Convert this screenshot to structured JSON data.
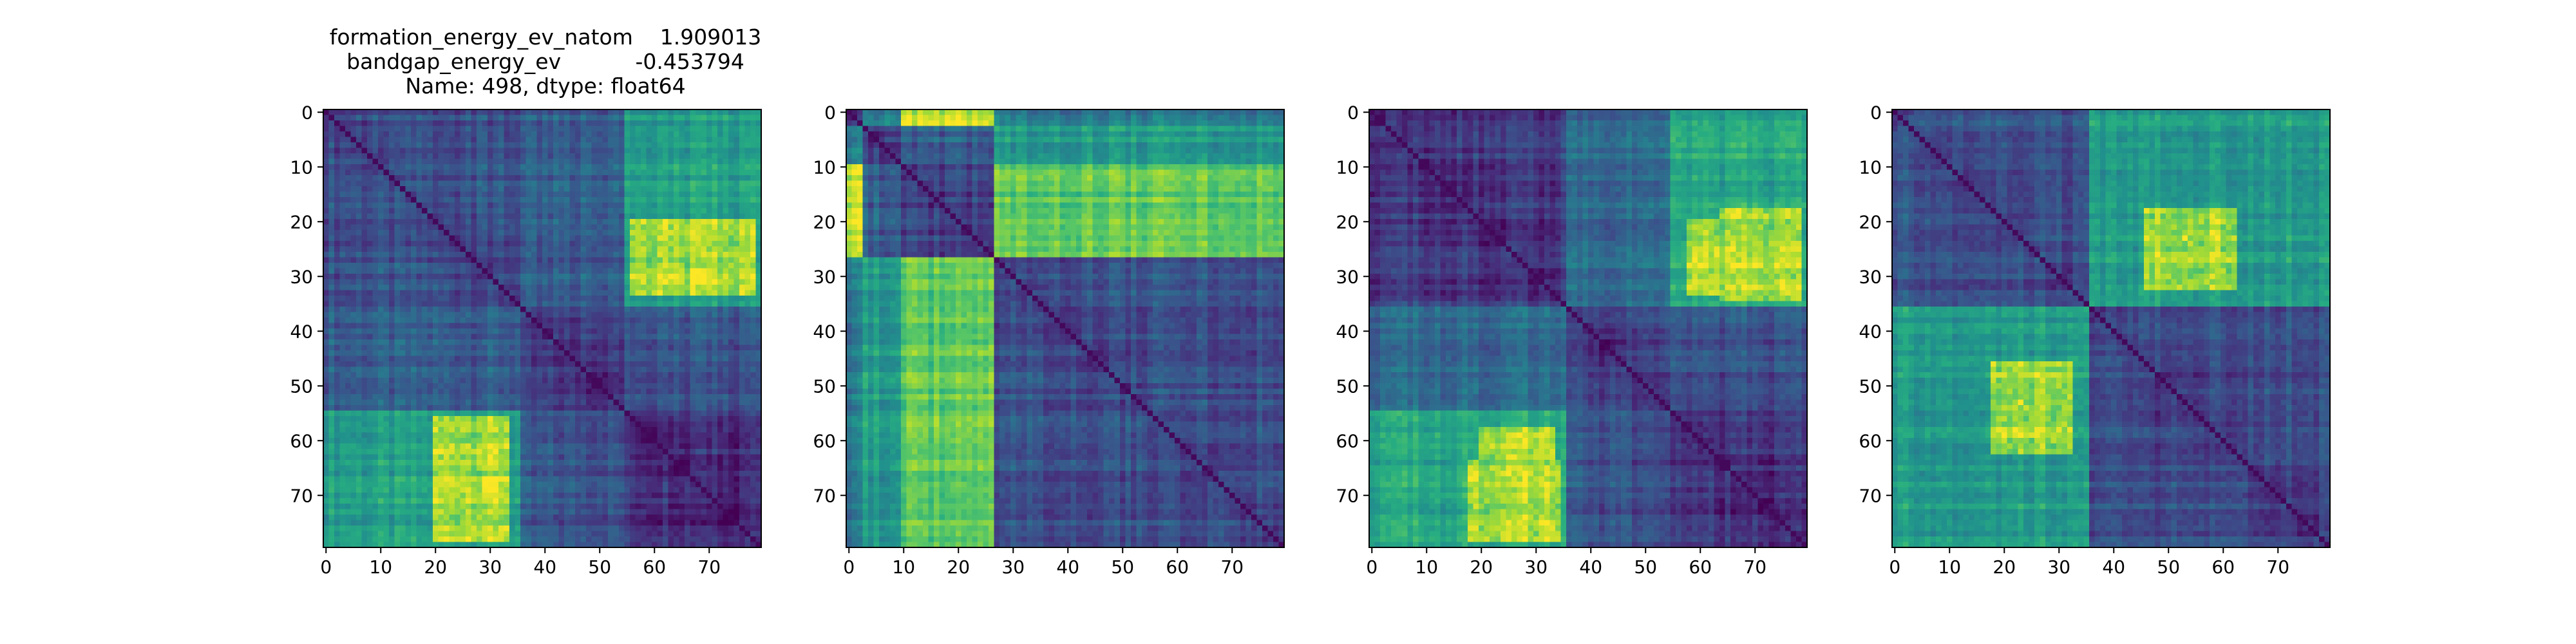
{
  "figure": {
    "title_lines": [
      "formation_energy_ev_natom    1.909013",
      "bandgap_energy_ev           -0.453794",
      "Name: 498, dtype: float64"
    ]
  },
  "chart_data": [
    {
      "type": "heatmap",
      "title": "formation_energy_ev_natom    1.909013\nbandgap_energy_ev           -0.453794\nName: 498, dtype: float64",
      "size": 80,
      "xticks": [
        0,
        10,
        20,
        30,
        40,
        50,
        60,
        70
      ],
      "yticks": [
        0,
        10,
        20,
        30,
        40,
        50,
        60,
        70
      ],
      "colormap": "viridis",
      "blocks": [
        0,
        36,
        55,
        80
      ],
      "block_levels": [
        [
          0.25,
          0.3,
          0.55
        ],
        [
          0.3,
          0.18,
          0.25
        ],
        [
          0.55,
          0.25,
          0.15
        ]
      ],
      "hotspots": [
        {
          "rows": [
            20,
            33
          ],
          "cols": [
            56,
            78
          ],
          "value": 0.95
        },
        {
          "rows": [
            56,
            78
          ],
          "cols": [
            20,
            33
          ],
          "value": 0.95
        }
      ]
    },
    {
      "type": "heatmap",
      "title": "",
      "size": 80,
      "xticks": [
        0,
        10,
        20,
        30,
        40,
        50,
        60,
        70
      ],
      "yticks": [
        0,
        10,
        20,
        30,
        40,
        50,
        60,
        70
      ],
      "colormap": "viridis",
      "blocks": [
        0,
        3,
        10,
        27,
        80
      ],
      "block_levels": [
        [
          0.2,
          0.4,
          0.9,
          0.4
        ],
        [
          0.4,
          0.2,
          0.3,
          0.55
        ],
        [
          0.9,
          0.3,
          0.2,
          0.75
        ],
        [
          0.4,
          0.55,
          0.75,
          0.25
        ]
      ],
      "hotspots": []
    },
    {
      "type": "heatmap",
      "title": "",
      "size": 80,
      "xticks": [
        0,
        10,
        20,
        30,
        40,
        50,
        60,
        70
      ],
      "yticks": [
        0,
        10,
        20,
        30,
        40,
        50,
        60,
        70
      ],
      "colormap": "viridis",
      "blocks": [
        0,
        36,
        55,
        80
      ],
      "block_levels": [
        [
          0.18,
          0.35,
          0.6
        ],
        [
          0.35,
          0.2,
          0.25
        ],
        [
          0.6,
          0.25,
          0.15
        ]
      ],
      "hotspots": [
        {
          "rows": [
            20,
            33
          ],
          "cols": [
            58,
            78
          ],
          "value": 0.95
        },
        {
          "rows": [
            64,
            78
          ],
          "cols": [
            18,
            34
          ],
          "value": 0.95
        }
      ]
    },
    {
      "type": "heatmap",
      "title": "",
      "size": 80,
      "xticks": [
        0,
        10,
        20,
        30,
        40,
        50,
        60,
        70
      ],
      "yticks": [
        0,
        10,
        20,
        30,
        40,
        50,
        60,
        70
      ],
      "colormap": "viridis",
      "blocks": [
        0,
        36,
        80
      ],
      "block_levels": [
        [
          0.25,
          0.55
        ],
        [
          0.55,
          0.22
        ]
      ],
      "hotspots": [
        {
          "rows": [
            18,
            32
          ],
          "cols": [
            46,
            62
          ],
          "value": 0.95
        },
        {
          "rows": [
            46,
            60
          ],
          "cols": [
            18,
            32
          ],
          "value": 0.95
        }
      ]
    }
  ]
}
